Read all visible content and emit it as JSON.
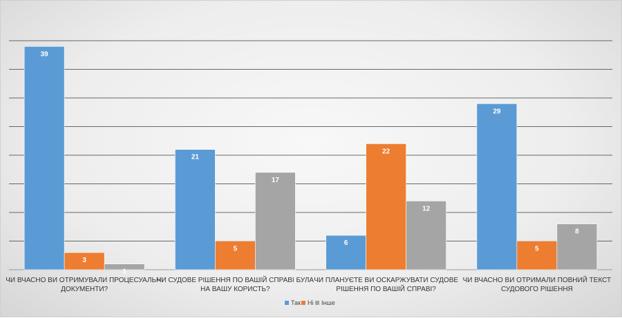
{
  "chart_data": {
    "type": "bar",
    "categories": [
      [
        "ЧИ ВЧАСНО ВИ ОТРИМУВАЛИ ПРОЦЕСУАЛЬНІ",
        "ДОКУМЕНТИ?"
      ],
      [
        "ЧИ СУДОВЕ РІШЕННЯ ПО ВАШІЙ СПРАВІ БУЛА",
        "НА ВАШУ КОРИСТЬ?"
      ],
      [
        "ЧИ ПЛАНУЄТЕ ВИ ОСКАРЖУВАТИ СУДОВЕ",
        "РІШЕННЯ ПО ВАШІЙ СПРАВІ?"
      ],
      [
        "ЧИ ВЧАСНО ВИ ОТРИМАЛИ ПОВНИЙ ТЕКСТ",
        "СУДОВОГО РІШЕННЯ"
      ]
    ],
    "series": [
      {
        "name": "Так",
        "color": "#5b9bd5",
        "values": [
          39,
          21,
          6,
          29
        ]
      },
      {
        "name": "Ні",
        "color": "#ed7d31",
        "values": [
          3,
          5,
          22,
          5
        ]
      },
      {
        "name": "Інше",
        "color": "#a5a5a5",
        "values": [
          1,
          17,
          12,
          8
        ]
      }
    ],
    "ylim": [
      0,
      40
    ],
    "grid": true,
    "legend_position": "bottom"
  }
}
